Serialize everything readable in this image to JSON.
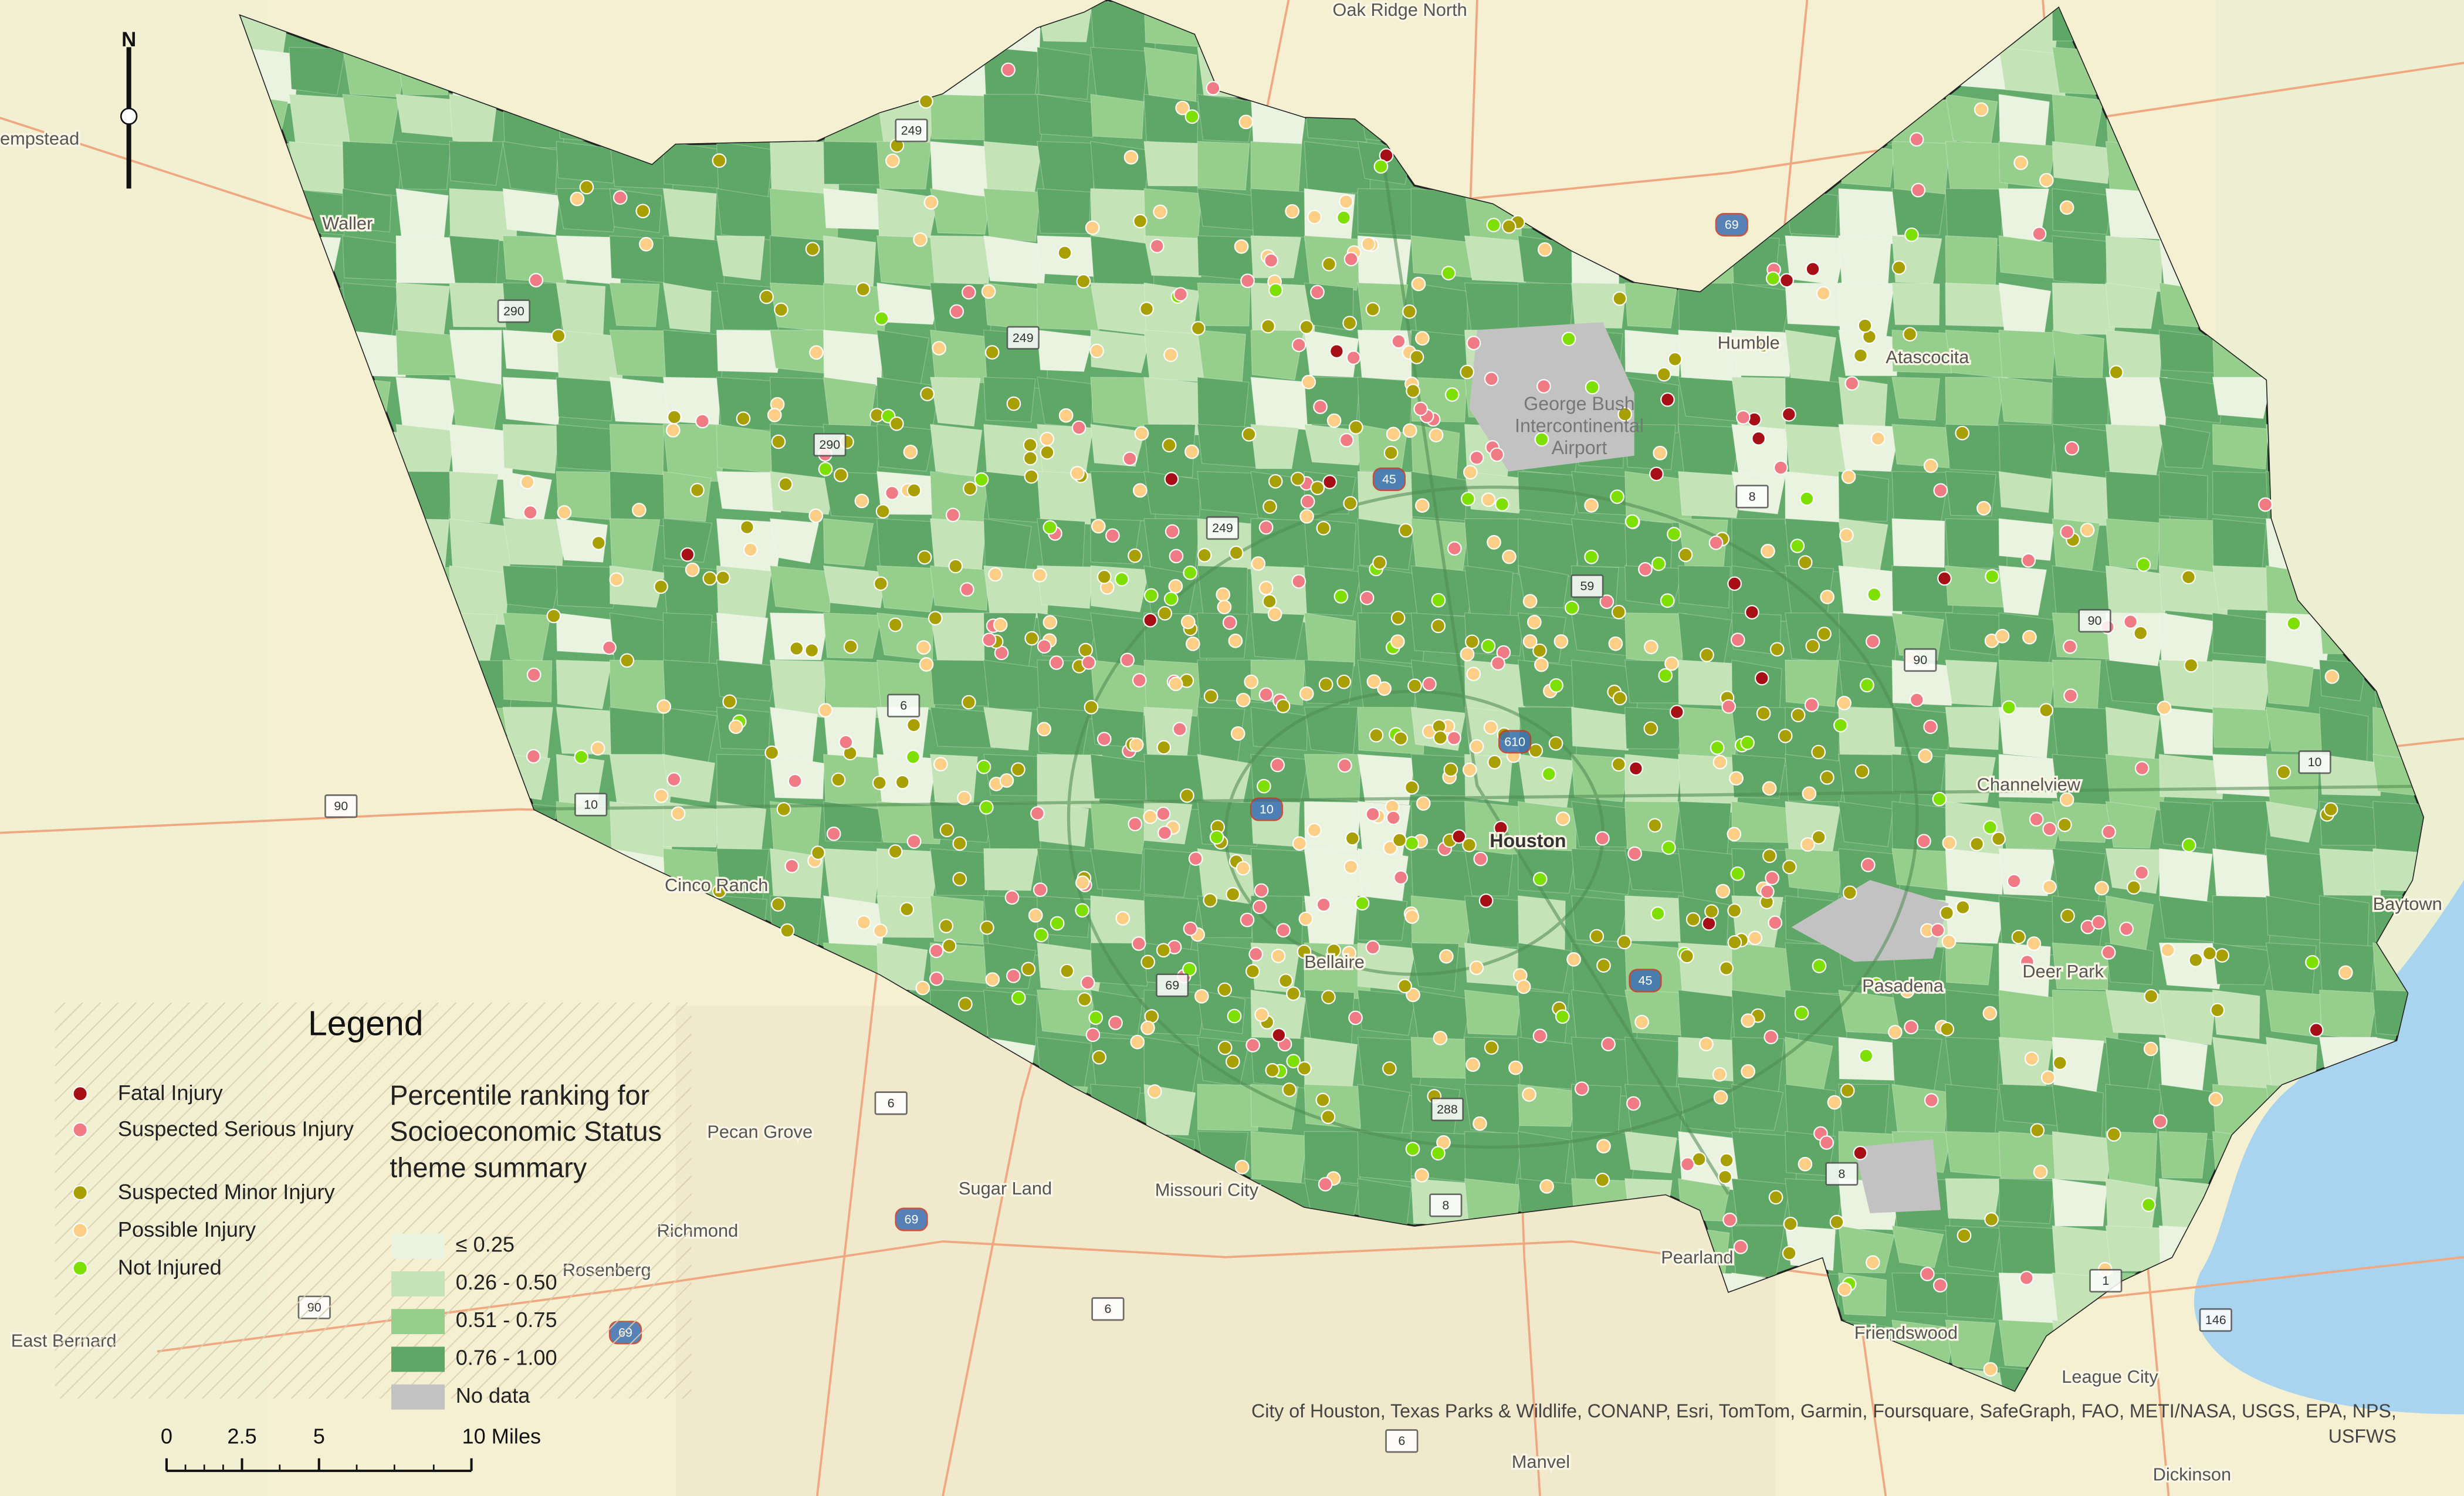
{
  "north_arrow": "N",
  "places": [
    {
      "label": "Oak Ridge North"
    },
    {
      "label": "empstead"
    },
    {
      "label": "Waller"
    },
    {
      "label": "Humble"
    },
    {
      "label": "Atascocita"
    },
    {
      "label": "George Bush Intercontinental Airport"
    },
    {
      "label": "Channelview"
    },
    {
      "label": "Baytown"
    },
    {
      "label": "Houston"
    },
    {
      "label": "Cinco Ranch"
    },
    {
      "label": "Bellaire"
    },
    {
      "label": "Pasadena"
    },
    {
      "label": "Deer Park"
    },
    {
      "label": "Pecan Grove"
    },
    {
      "label": "Sugar Land"
    },
    {
      "label": "Missouri City"
    },
    {
      "label": "Richmond"
    },
    {
      "label": "Rosenberg"
    },
    {
      "label": "East Bernard"
    },
    {
      "label": "Pearland"
    },
    {
      "label": "Friendswood"
    },
    {
      "label": "League City"
    },
    {
      "label": "Manvel"
    },
    {
      "label": "Dickinson"
    }
  ],
  "highway_shields": [
    "249",
    "69",
    "290",
    "249",
    "290",
    "45",
    "8",
    "59",
    "249",
    "90",
    "90",
    "610",
    "10",
    "90",
    "10",
    "10",
    "6",
    "45",
    "69",
    "288",
    "6",
    "8",
    "8",
    "69",
    "6",
    "69",
    "146",
    "6",
    "1",
    "90"
  ],
  "legend": {
    "title": "Legend",
    "injury_types": [
      {
        "label": "Fatal Injury",
        "color": "#a50f15"
      },
      {
        "label": "Suspected Serious Injury",
        "color": "#f07b85"
      },
      {
        "label": "Suspected Minor Injury",
        "color": "#a8a000"
      },
      {
        "label": "Possible Injury",
        "color": "#fdcf86"
      },
      {
        "label": "Not Injured",
        "color": "#7ee000"
      }
    ],
    "ranking_title": "Percentile ranking for Socioeconomic Status theme summary",
    "ranking_classes": [
      {
        "label": "≤ 0.25",
        "color": "#eaf2e0"
      },
      {
        "label": "0.26 - 0.50",
        "color": "#c4e3b6"
      },
      {
        "label": "0.51 - 0.75",
        "color": "#96cf8c"
      },
      {
        "label": "0.76 - 1.00",
        "color": "#5fa766"
      },
      {
        "label": "No data",
        "color": "#c2c2c2"
      }
    ]
  },
  "scale_bar": [
    "0",
    "2.5",
    "5",
    "10 Miles"
  ],
  "attribution": "City of Houston, Texas Parks & Wildlife, CONANP, Esri, TomTom, Garmin, Foursquare, SafeGraph, FAO, METI/NASA, USGS, EPA, NPS, USFWS"
}
